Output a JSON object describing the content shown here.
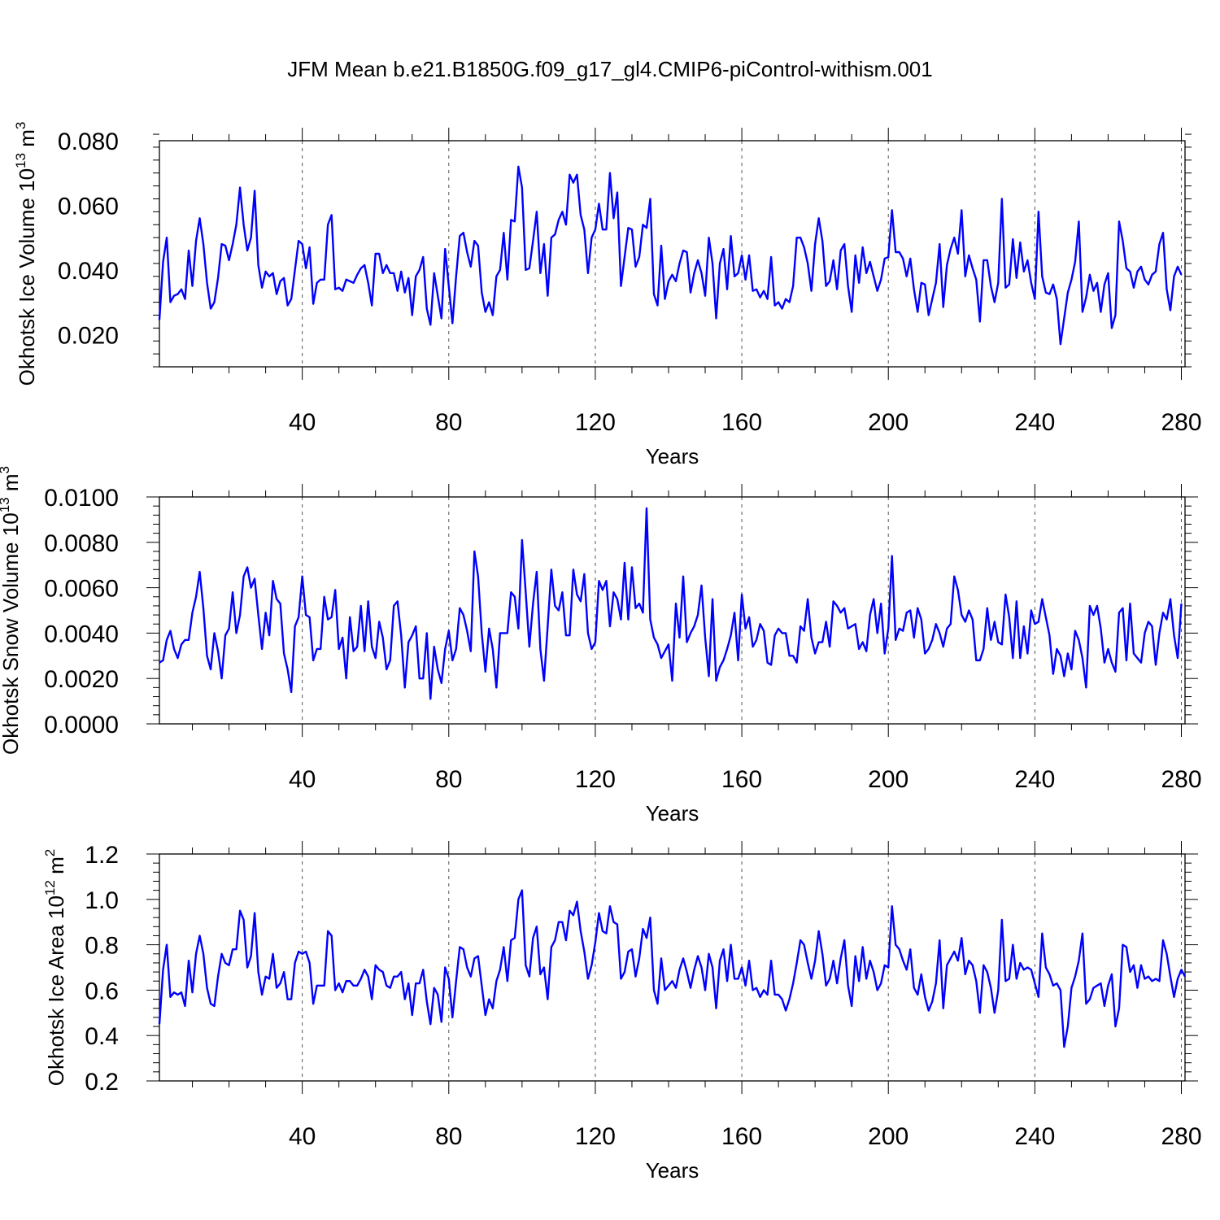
{
  "title": "JFM Mean b.e21.B1850G.f09_g17_gl4.CMIP6-piControl-withism.001",
  "line_color": "#0000ff",
  "chart_data": [
    {
      "type": "line",
      "xlabel": "Years",
      "ylabel": "Okhotsk Ice Volume 10",
      "ylabel_sup": "13",
      "ylabel_unit": " m",
      "ylabel_unit_sup": "3",
      "xlim": [
        1,
        281
      ],
      "ylim": [
        0.01,
        0.08
      ],
      "xticks": [
        40,
        80,
        120,
        160,
        200,
        240,
        280
      ],
      "xtick_labels": [
        "40",
        "80",
        "120",
        "160",
        "200",
        "240",
        "280"
      ],
      "yticks": [
        0.02,
        0.04,
        0.06,
        0.08
      ],
      "ytick_labels": [
        "0.020",
        "0.040",
        "0.060",
        "0.080"
      ],
      "grid": "vertical dashed at x ticks",
      "series": [
        {
          "x_start": 1,
          "values": [
            0.0245,
            0.0425,
            0.05,
            0.03,
            0.032,
            0.0325,
            0.034,
            0.031,
            0.046,
            0.035,
            0.049,
            0.056,
            0.048,
            0.036,
            0.028,
            0.03,
            0.0375,
            0.048,
            0.0475,
            0.043,
            0.048,
            0.054,
            0.0655,
            0.054,
            0.046,
            0.05,
            0.0645,
            0.0415,
            0.0345,
            0.0395,
            0.038,
            0.039,
            0.0325,
            0.0365,
            0.0375,
            0.029,
            0.031,
            0.04,
            0.049,
            0.048,
            0.0405,
            0.047,
            0.0295,
            0.036,
            0.037,
            0.037,
            0.054,
            0.057,
            0.034,
            0.0345,
            0.0335,
            0.037,
            0.0365,
            0.036,
            0.0385,
            0.0405,
            0.0415,
            0.036,
            0.029,
            0.045,
            0.045,
            0.039,
            0.0415,
            0.039,
            0.039,
            0.0335,
            0.0395,
            0.033,
            0.0375,
            0.026,
            0.038,
            0.04,
            0.044,
            0.028,
            0.023,
            0.039,
            0.032,
            0.025,
            0.0465,
            0.035,
            0.0235,
            0.038,
            0.0505,
            0.0515,
            0.0455,
            0.041,
            0.049,
            0.0475,
            0.033,
            0.027,
            0.03,
            0.026,
            0.038,
            0.04,
            0.0515,
            0.037,
            0.0555,
            0.055,
            0.072,
            0.0655,
            0.04,
            0.0405,
            0.049,
            0.058,
            0.039,
            0.048,
            0.032,
            0.05,
            0.051,
            0.0555,
            0.058,
            0.054,
            0.0695,
            0.067,
            0.0695,
            0.057,
            0.0525,
            0.039,
            0.05,
            0.0525,
            0.0605,
            0.0525,
            0.0525,
            0.07,
            0.056,
            0.064,
            0.035,
            0.044,
            0.053,
            0.0525,
            0.041,
            0.044,
            0.054,
            0.053,
            0.062,
            0.0325,
            0.029,
            0.0475,
            0.031,
            0.0365,
            0.0385,
            0.0365,
            0.042,
            0.046,
            0.0455,
            0.033,
            0.039,
            0.043,
            0.039,
            0.032,
            0.05,
            0.042,
            0.025,
            0.042,
            0.0465,
            0.034,
            0.0505,
            0.038,
            0.039,
            0.0445,
            0.037,
            0.0445,
            0.0335,
            0.034,
            0.0315,
            0.0335,
            0.031,
            0.044,
            0.029,
            0.03,
            0.028,
            0.031,
            0.03,
            0.035,
            0.05,
            0.05,
            0.047,
            0.042,
            0.0335,
            0.048,
            0.056,
            0.049,
            0.035,
            0.0365,
            0.043,
            0.034,
            0.046,
            0.048,
            0.035,
            0.027,
            0.0445,
            0.036,
            0.047,
            0.039,
            0.0425,
            0.038,
            0.0335,
            0.037,
            0.0435,
            0.044,
            0.0585,
            0.0455,
            0.0455,
            0.0435,
            0.038,
            0.0435,
            0.034,
            0.027,
            0.036,
            0.0355,
            0.026,
            0.031,
            0.036,
            0.048,
            0.0285,
            0.0415,
            0.0465,
            0.05,
            0.045,
            0.0585,
            0.038,
            0.0445,
            0.0405,
            0.037,
            0.024,
            0.043,
            0.043,
            0.035,
            0.03,
            0.036,
            0.062,
            0.0345,
            0.0355,
            0.0495,
            0.0375,
            0.0485,
            0.0395,
            0.043,
            0.036,
            0.031,
            0.058,
            0.038,
            0.033,
            0.0325,
            0.0355,
            0.031,
            0.017,
            0.025,
            0.033,
            0.037,
            0.0425,
            0.055,
            0.027,
            0.0315,
            0.0385,
            0.0335,
            0.036,
            0.027,
            0.0355,
            0.039,
            0.022,
            0.026,
            0.055,
            0.049,
            0.0405,
            0.0395,
            0.0345,
            0.0395,
            0.041,
            0.037,
            0.0355,
            0.0385,
            0.0395,
            0.048,
            0.0515,
            0.034,
            0.0275,
            0.038,
            0.041,
            0.0385
          ]
        }
      ]
    },
    {
      "type": "line",
      "xlabel": "Years",
      "ylabel": "Okhotsk Snow Volume 10",
      "ylabel_sup": "13",
      "ylabel_unit": " m",
      "ylabel_unit_sup": "3",
      "xlim": [
        1,
        281
      ],
      "ylim": [
        0.0,
        0.01
      ],
      "xticks": [
        40,
        80,
        120,
        160,
        200,
        240,
        280
      ],
      "xtick_labels": [
        "40",
        "80",
        "120",
        "160",
        "200",
        "240",
        "280"
      ],
      "yticks": [
        0.0,
        0.002,
        0.004,
        0.006,
        0.008,
        0.01
      ],
      "ytick_labels": [
        "0.0000",
        "0.0020",
        "0.0040",
        "0.0060",
        "0.0080",
        "0.0100"
      ],
      "grid": "vertical dashed at x ticks",
      "series": [
        {
          "x_start": 1,
          "values": [
            0.0027,
            0.0028,
            0.0037,
            0.0041,
            0.0033,
            0.0029,
            0.0035,
            0.0037,
            0.0037,
            0.0049,
            0.0056,
            0.0067,
            0.0051,
            0.003,
            0.0024,
            0.004,
            0.0032,
            0.002,
            0.0039,
            0.0042,
            0.0058,
            0.004,
            0.0048,
            0.0065,
            0.0069,
            0.006,
            0.0064,
            0.0048,
            0.0033,
            0.0049,
            0.0039,
            0.0063,
            0.0055,
            0.0053,
            0.0031,
            0.0024,
            0.0014,
            0.0043,
            0.0047,
            0.0065,
            0.0048,
            0.0047,
            0.0028,
            0.0033,
            0.0033,
            0.0056,
            0.0046,
            0.0047,
            0.0059,
            0.0033,
            0.0038,
            0.002,
            0.0047,
            0.0032,
            0.0034,
            0.0052,
            0.0032,
            0.0054,
            0.0034,
            0.0029,
            0.0045,
            0.0038,
            0.0024,
            0.0028,
            0.0052,
            0.0054,
            0.0039,
            0.0016,
            0.0036,
            0.0039,
            0.0043,
            0.002,
            0.002,
            0.004,
            0.0011,
            0.0034,
            0.0024,
            0.0018,
            0.0033,
            0.0041,
            0.0028,
            0.0033,
            0.0051,
            0.0048,
            0.0041,
            0.0032,
            0.0076,
            0.0065,
            0.004,
            0.0023,
            0.0042,
            0.0033,
            0.0016,
            0.004,
            0.004,
            0.004,
            0.0058,
            0.0056,
            0.0042,
            0.0081,
            0.0058,
            0.0034,
            0.0053,
            0.0067,
            0.0033,
            0.0019,
            0.0043,
            0.0068,
            0.0052,
            0.005,
            0.0058,
            0.0039,
            0.0039,
            0.0068,
            0.0057,
            0.0054,
            0.0066,
            0.004,
            0.0033,
            0.0036,
            0.0063,
            0.0059,
            0.0063,
            0.0043,
            0.0058,
            0.0055,
            0.0046,
            0.0071,
            0.0046,
            0.0069,
            0.0051,
            0.0053,
            0.0049,
            0.0095,
            0.0046,
            0.0038,
            0.0035,
            0.0029,
            0.0032,
            0.0035,
            0.0019,
            0.0053,
            0.0038,
            0.0065,
            0.0036,
            0.004,
            0.0043,
            0.0048,
            0.0061,
            0.0038,
            0.0021,
            0.0055,
            0.0019,
            0.0025,
            0.0028,
            0.0033,
            0.0039,
            0.0049,
            0.0028,
            0.0057,
            0.0042,
            0.0047,
            0.0034,
            0.0037,
            0.0044,
            0.0041,
            0.0027,
            0.0026,
            0.0039,
            0.0042,
            0.004,
            0.004,
            0.003,
            0.003,
            0.0027,
            0.0043,
            0.0041,
            0.0055,
            0.0038,
            0.0031,
            0.0036,
            0.0036,
            0.0045,
            0.0034,
            0.0054,
            0.0052,
            0.0049,
            0.0051,
            0.0042,
            0.0043,
            0.0044,
            0.0033,
            0.0036,
            0.0032,
            0.0048,
            0.0055,
            0.004,
            0.0053,
            0.0031,
            0.0042,
            0.0074,
            0.0037,
            0.0042,
            0.0041,
            0.0049,
            0.005,
            0.0038,
            0.0051,
            0.0046,
            0.0031,
            0.0033,
            0.0037,
            0.0044,
            0.004,
            0.0034,
            0.0042,
            0.0044,
            0.0065,
            0.0059,
            0.0048,
            0.0045,
            0.005,
            0.0046,
            0.0028,
            0.0028,
            0.0033,
            0.0051,
            0.0037,
            0.0045,
            0.0036,
            0.0035,
            0.0057,
            0.0047,
            0.0029,
            0.0054,
            0.0029,
            0.0043,
            0.0031,
            0.005,
            0.0044,
            0.0045,
            0.0055,
            0.0047,
            0.0039,
            0.0022,
            0.0033,
            0.003,
            0.0021,
            0.0031,
            0.0024,
            0.0041,
            0.0037,
            0.0029,
            0.0016,
            0.0052,
            0.0048,
            0.0052,
            0.0042,
            0.0027,
            0.0033,
            0.0027,
            0.0023,
            0.0049,
            0.0051,
            0.0028,
            0.0053,
            0.0031,
            0.0029,
            0.0027,
            0.004,
            0.0045,
            0.0043,
            0.0026,
            0.004,
            0.0049,
            0.0046,
            0.0055,
            0.0039,
            0.0029,
            0.0053
          ]
        }
      ]
    },
    {
      "type": "line",
      "xlabel": "Years",
      "ylabel": "Okhotsk Ice Area 10",
      "ylabel_sup": "12",
      "ylabel_unit": " m",
      "ylabel_unit_sup": "2",
      "xlim": [
        1,
        281
      ],
      "ylim": [
        0.2,
        1.2
      ],
      "xticks": [
        40,
        80,
        120,
        160,
        200,
        240,
        280
      ],
      "xtick_labels": [
        "40",
        "80",
        "120",
        "160",
        "200",
        "240",
        "280"
      ],
      "yticks": [
        0.2,
        0.4,
        0.6,
        0.8,
        1.0,
        1.2
      ],
      "ytick_labels": [
        "0.2",
        "0.4",
        "0.6",
        "0.8",
        "1.0",
        "1.2"
      ],
      "grid": "vertical dashed at x ticks",
      "series": [
        {
          "x_start": 1,
          "values": [
            0.45,
            0.69,
            0.8,
            0.57,
            0.59,
            0.58,
            0.59,
            0.53,
            0.73,
            0.59,
            0.76,
            0.84,
            0.76,
            0.61,
            0.54,
            0.53,
            0.66,
            0.76,
            0.72,
            0.71,
            0.78,
            0.78,
            0.95,
            0.91,
            0.7,
            0.75,
            0.94,
            0.68,
            0.58,
            0.66,
            0.65,
            0.76,
            0.61,
            0.63,
            0.68,
            0.56,
            0.56,
            0.72,
            0.77,
            0.76,
            0.77,
            0.72,
            0.54,
            0.62,
            0.62,
            0.62,
            0.86,
            0.84,
            0.6,
            0.63,
            0.59,
            0.64,
            0.64,
            0.62,
            0.62,
            0.65,
            0.69,
            0.66,
            0.56,
            0.71,
            0.69,
            0.68,
            0.62,
            0.61,
            0.66,
            0.66,
            0.68,
            0.56,
            0.63,
            0.49,
            0.63,
            0.63,
            0.69,
            0.55,
            0.45,
            0.61,
            0.58,
            0.46,
            0.7,
            0.65,
            0.48,
            0.64,
            0.79,
            0.78,
            0.7,
            0.66,
            0.74,
            0.75,
            0.62,
            0.49,
            0.56,
            0.52,
            0.64,
            0.69,
            0.79,
            0.64,
            0.82,
            0.83,
            1.0,
            1.04,
            0.71,
            0.66,
            0.83,
            0.88,
            0.67,
            0.7,
            0.56,
            0.79,
            0.82,
            0.9,
            0.9,
            0.82,
            0.95,
            0.93,
            0.99,
            0.86,
            0.77,
            0.65,
            0.71,
            0.81,
            0.94,
            0.86,
            0.85,
            0.97,
            0.9,
            0.89,
            0.65,
            0.68,
            0.77,
            0.78,
            0.66,
            0.74,
            0.87,
            0.83,
            0.92,
            0.6,
            0.54,
            0.74,
            0.6,
            0.62,
            0.64,
            0.61,
            0.69,
            0.74,
            0.68,
            0.61,
            0.69,
            0.75,
            0.7,
            0.6,
            0.76,
            0.7,
            0.52,
            0.73,
            0.78,
            0.64,
            0.8,
            0.65,
            0.65,
            0.7,
            0.62,
            0.73,
            0.6,
            0.61,
            0.57,
            0.6,
            0.58,
            0.73,
            0.58,
            0.58,
            0.56,
            0.51,
            0.56,
            0.63,
            0.72,
            0.82,
            0.8,
            0.72,
            0.65,
            0.73,
            0.86,
            0.76,
            0.62,
            0.65,
            0.73,
            0.63,
            0.74,
            0.82,
            0.62,
            0.53,
            0.75,
            0.64,
            0.79,
            0.65,
            0.73,
            0.68,
            0.6,
            0.63,
            0.71,
            0.7,
            0.97,
            0.8,
            0.78,
            0.73,
            0.69,
            0.78,
            0.61,
            0.58,
            0.67,
            0.57,
            0.51,
            0.55,
            0.63,
            0.82,
            0.52,
            0.71,
            0.74,
            0.77,
            0.73,
            0.83,
            0.67,
            0.73,
            0.71,
            0.64,
            0.5,
            0.71,
            0.68,
            0.61,
            0.5,
            0.6,
            0.91,
            0.64,
            0.65,
            0.8,
            0.65,
            0.72,
            0.69,
            0.7,
            0.69,
            0.63,
            0.57,
            0.85,
            0.7,
            0.67,
            0.62,
            0.63,
            0.6,
            0.35,
            0.44,
            0.61,
            0.66,
            0.73,
            0.85,
            0.54,
            0.56,
            0.61,
            0.62,
            0.63,
            0.53,
            0.62,
            0.67,
            0.44,
            0.52,
            0.8,
            0.79,
            0.68,
            0.71,
            0.61,
            0.71,
            0.65,
            0.66,
            0.64,
            0.65,
            0.64,
            0.82,
            0.76,
            0.66,
            0.57,
            0.65,
            0.69,
            0.66
          ]
        }
      ]
    }
  ]
}
